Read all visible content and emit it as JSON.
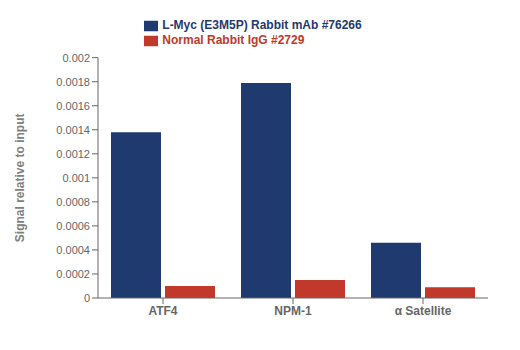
{
  "chart_data": {
    "type": "bar",
    "categories": [
      "ATF4",
      "NPM-1",
      "α Satellite"
    ],
    "series": [
      {
        "name": "L-Myc (E3M5P) Rabbit mAb #76266",
        "color": "#1F3A6E",
        "values": [
          0.00138,
          0.00179,
          0.00046
        ]
      },
      {
        "name": "Normal Rabbit IgG #2729",
        "color": "#C0392B",
        "values": [
          0.0001,
          0.00015,
          9e-05
        ]
      }
    ],
    "ylabel": "Signal relative to input",
    "ylim": [
      0,
      0.002
    ],
    "yticks": [
      0,
      0.0002,
      0.0004,
      0.0006,
      0.0008,
      0.001,
      0.0012,
      0.0014,
      0.0016,
      0.0018,
      0.002
    ],
    "grid": false,
    "legend": "top"
  }
}
